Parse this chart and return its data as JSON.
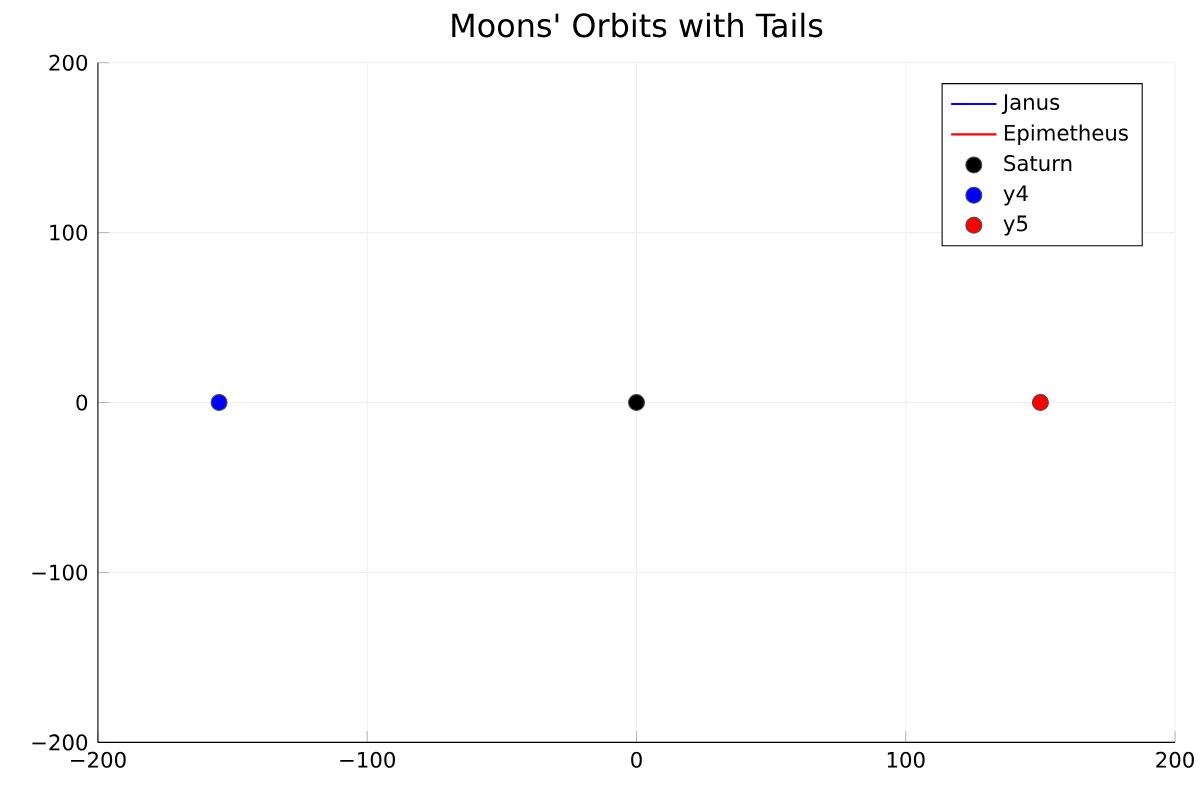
{
  "chart_data": {
    "type": "scatter",
    "title": "Moons' Orbits with Tails",
    "series": [
      {
        "name": "Janus",
        "type": "line",
        "color": "#0000ff"
      },
      {
        "name": "Epimetheus",
        "type": "line",
        "color": "#ff0000"
      },
      {
        "name": "Saturn",
        "color": "#000000",
        "x": [
          0
        ],
        "values": [
          0
        ]
      },
      {
        "name": "y4",
        "color": "#0000ff",
        "x": [
          -155
        ],
        "values": [
          0
        ]
      },
      {
        "name": "y5",
        "color": "#ff0000",
        "x": [
          150
        ],
        "values": [
          0
        ]
      }
    ],
    "xlim": [
      -200,
      200
    ],
    "ylim": [
      -200,
      200
    ],
    "xticks": [
      {
        "value": -200,
        "label": "−200"
      },
      {
        "value": -100,
        "label": "−100"
      },
      0,
      100,
      200
    ],
    "yticks": [
      {
        "value": -200,
        "label": "−200"
      },
      {
        "value": -100,
        "label": "−100"
      },
      0,
      100,
      200
    ],
    "grid": true,
    "legend": "top right"
  }
}
